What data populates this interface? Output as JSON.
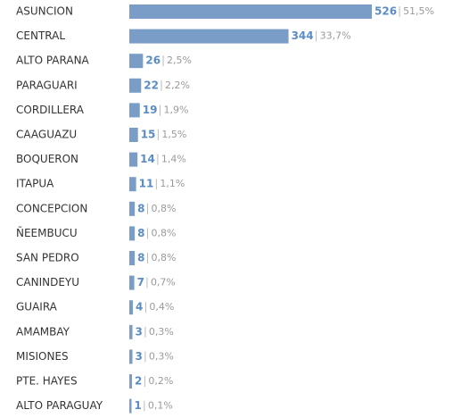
{
  "chart_data": {
    "type": "bar",
    "orientation": "horizontal",
    "color": "#7a9dc8",
    "categories": [
      "ASUNCION",
      "CENTRAL",
      "ALTO PARANA",
      "PARAGUARI",
      "CORDILLERA",
      "CAAGUAZU",
      "BOQUERON",
      "ITAPUA",
      "CONCEPCION",
      "ÑEEMBUCU",
      "SAN PEDRO",
      "CANINDEYU",
      "GUAIRA",
      "AMAMBAY",
      "MISIONES",
      "PTE. HAYES",
      "ALTO PARAGUAY"
    ],
    "values": [
      526,
      344,
      26,
      22,
      19,
      15,
      14,
      11,
      8,
      8,
      8,
      7,
      4,
      3,
      3,
      2,
      1
    ],
    "percent_labels": [
      "51,5%",
      "33,7%",
      "2,5%",
      "2,2%",
      "1,9%",
      "1,5%",
      "1,4%",
      "1,1%",
      "0,8%",
      "0,8%",
      "0,8%",
      "0,7%",
      "0,4%",
      "0,3%",
      "0,3%",
      "0,2%",
      "0,1%"
    ]
  }
}
